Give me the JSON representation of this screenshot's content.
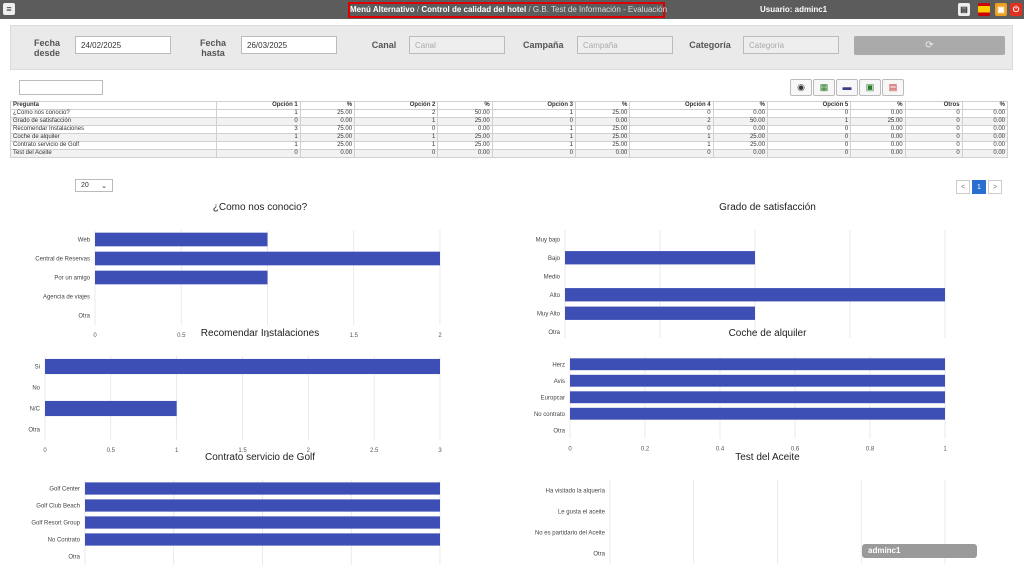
{
  "topbar": {
    "menu_icon": "menu-icon",
    "crumb1": "Menú Alternativo",
    "crumb2": "Control de calidad del hotel",
    "crumb3": "G.B. Test de Información - Evaluación",
    "sep": "/",
    "user": "Usuario: adminc1",
    "icons": [
      "report-icon",
      "spain-flag-icon",
      "print-icon",
      "power-icon"
    ]
  },
  "filters": {
    "from_label": "Fecha desde",
    "from_value": "24/02/2025",
    "to_label": "Fecha hasta",
    "to_value": "26/03/2025",
    "canal_label": "Canal",
    "canal_placeholder": "Canal",
    "campana_label": "Campaña",
    "campana_placeholder": "Campaña",
    "categoria_label": "Categoría",
    "categoria_placeholder": "Categoría",
    "refresh_glyph": "⟳"
  },
  "export_buttons": [
    "view-icon",
    "excel-icon",
    "car-icon",
    "printer-icon",
    "pdf-icon"
  ],
  "table": {
    "headers": [
      "Pregunta",
      "Opción 1",
      "%",
      "Opción 2",
      "%",
      "Opción 3",
      "%",
      "Opción 4",
      "%",
      "Opción 5",
      "%",
      "Otros",
      "%"
    ],
    "rows": [
      [
        "¿Como nos conocio?",
        "1",
        "25.00",
        "2",
        "50.00",
        "1",
        "25.00",
        "0",
        "0.00",
        "0",
        "0.00",
        "0",
        "0.00"
      ],
      [
        "Grado de satisfacción",
        "0",
        "0.00",
        "1",
        "25.00",
        "0",
        "0.00",
        "2",
        "50.00",
        "1",
        "25.00",
        "0",
        "0.00"
      ],
      [
        "Recomendar Instalaciones",
        "3",
        "75.00",
        "0",
        "0.00",
        "1",
        "25.00",
        "0",
        "0.00",
        "0",
        "0.00",
        "0",
        "0.00"
      ],
      [
        "Coche de alquiler",
        "1",
        "25.00",
        "1",
        "25.00",
        "1",
        "25.00",
        "1",
        "25.00",
        "0",
        "0.00",
        "0",
        "0.00"
      ],
      [
        "Contrato servicio de Golf",
        "1",
        "25.00",
        "1",
        "25.00",
        "1",
        "25.00",
        "1",
        "25.00",
        "0",
        "0.00",
        "0",
        "0.00"
      ],
      [
        "Test del Aceite",
        "0",
        "0.00",
        "0",
        "0.00",
        "0",
        "0.00",
        "0",
        "0.00",
        "0",
        "0.00",
        "0",
        "0.00"
      ]
    ]
  },
  "pagination": {
    "page_size": "20",
    "prev": "<",
    "page": "1",
    "next": ">"
  },
  "tooltip": "adminc1",
  "colors": {
    "bar": "#3d4fb5",
    "grid": "#e2e2e2",
    "highlight": "#dd0000"
  },
  "chart_data": [
    {
      "type": "bar",
      "title": "¿Como nos conocio?",
      "categories": [
        "Web",
        "Central de Reservas",
        "Por un amigo",
        "Agencia de viajes",
        "Otra"
      ],
      "values": [
        1,
        2,
        1,
        0,
        0
      ],
      "xlim": [
        0,
        2
      ],
      "ticks": [
        "0",
        "0.5",
        "1",
        "1.5",
        "2"
      ]
    },
    {
      "type": "bar",
      "title": "Grado de satisfacción",
      "categories": [
        "Muy bajo",
        "Bajo",
        "Medio",
        "Alto",
        "Muy Alto",
        "Otra"
      ],
      "values": [
        0,
        1,
        0,
        2,
        1,
        0
      ],
      "xlim": [
        0,
        2
      ],
      "ticks": [
        "0",
        "0.5",
        "1",
        "1.5",
        "2"
      ]
    },
    {
      "type": "bar",
      "title": "Recomendar Instalaciones",
      "categories": [
        "Si",
        "No",
        "N/C",
        "Otra"
      ],
      "values": [
        3,
        0,
        1,
        0
      ],
      "xlim": [
        0,
        3
      ],
      "ticks": [
        "0",
        "0.5",
        "1",
        "1.5",
        "2",
        "2.5",
        "3"
      ]
    },
    {
      "type": "bar",
      "title": "Coche de alquiler",
      "categories": [
        "Herz",
        "Avis",
        "Europcar",
        "No contrato",
        "Otra"
      ],
      "values": [
        1,
        1,
        1,
        1,
        0
      ],
      "xlim": [
        0,
        1
      ],
      "ticks": [
        "0",
        "0.2",
        "0.4",
        "0.6",
        "0.8",
        "1"
      ]
    },
    {
      "type": "bar",
      "title": "Contrato servicio de Golf",
      "categories": [
        "Golf Center",
        "Golf Club Beach",
        "Golf Resort Group",
        "No Contrato",
        "Otra"
      ],
      "values": [
        1,
        1,
        1,
        1,
        0
      ],
      "xlim": [
        0,
        1
      ],
      "ticks": []
    },
    {
      "type": "bar",
      "title": "Test del Aceite",
      "categories": [
        "Ha visitado la alquería",
        "Le gusta el aceite",
        "No es partidario del Aceite",
        "Otra"
      ],
      "values": [
        0,
        0,
        0,
        0
      ],
      "xlim": [
        0,
        1
      ],
      "ticks": []
    }
  ]
}
